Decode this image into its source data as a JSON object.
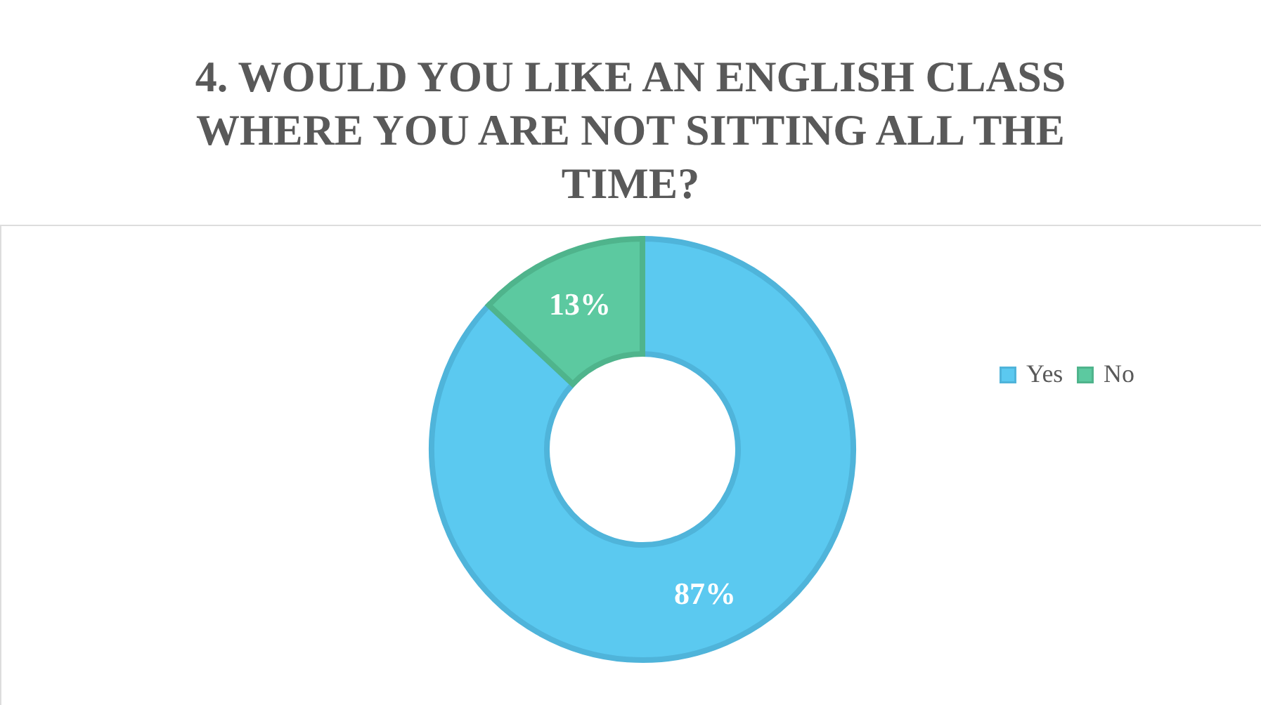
{
  "chart_data": {
    "type": "donut",
    "title": "4. WOULD YOU LIKE AN ENGLISH CLASS WHERE YOU ARE NOT SITTING ALL THE TIME?",
    "categories": [
      "Yes",
      "No"
    ],
    "values": [
      87,
      13
    ],
    "colors": [
      "#5bc9f0",
      "#5cc9a0"
    ],
    "value_labels": [
      "87%",
      "13%"
    ],
    "legend": "right"
  }
}
